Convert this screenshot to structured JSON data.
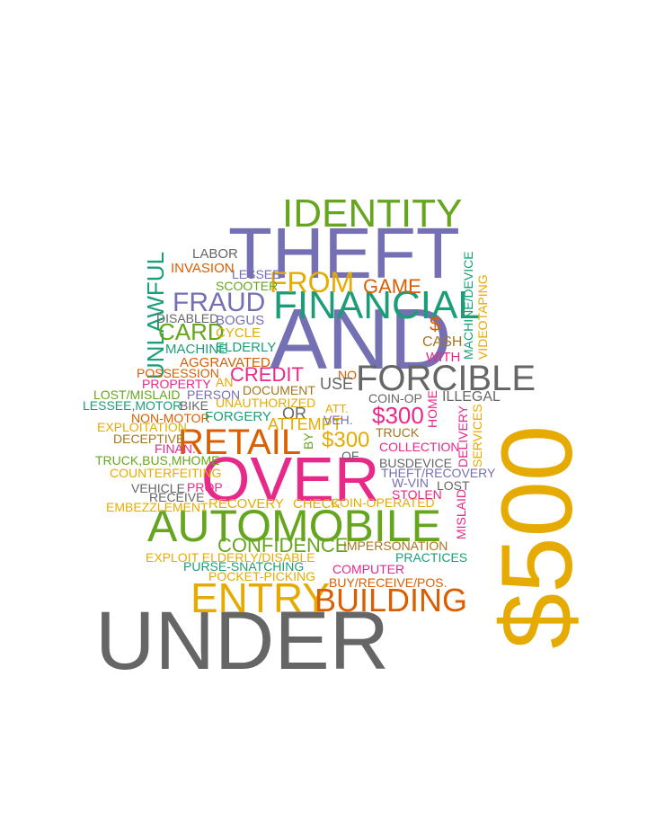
{
  "palette": {
    "green": "#66a61e",
    "purple": "#7570b3",
    "pink": "#e7298a",
    "gold": "#e6ab02",
    "orange": "#d95f02",
    "gray": "#666666",
    "teal": "#1b9e77",
    "brown": "#a6761d"
  },
  "words": [
    "UNDER",
    "$500",
    "AND",
    "THEFT",
    "OVER",
    "AUTOMOBILE",
    "RETAIL",
    "IDENTITY",
    "FINANCIAL",
    "FORCIBLE",
    "ENTRY",
    "BUILDING",
    "FROM",
    "FRAUD",
    "UNLAWFUL",
    "CARD",
    "CREDIT",
    "$300",
    "GAME",
    "CONFIDENCE",
    "LABOR",
    "INVASION",
    "LESSEE",
    "SCOOTER",
    "DISABLED",
    "BOGUS",
    "CYCLE",
    "MACHINE",
    "ELDERLY",
    "AGGRAVATED",
    "POSSESSION",
    "PROPERTY",
    "LOST/MISLAID",
    "LESSEE,MOTOR",
    "BIKE",
    "NON-MOTOR",
    "EXPLOITATION",
    "DECEPTIVE",
    "FINAN.",
    "TRUCK,BUS,MHOME",
    "COUNTERFEITING",
    "VEHICLE",
    "RECEIVE",
    "EMBEZZLEMENT",
    "EXPLOIT ELDERLY/DISABLE",
    "PURSE-SNATCHING",
    "POCKET-PICKING",
    "COMPUTER",
    "BUY/RECEIVE/POS.",
    "IMPERSONATION",
    "PRACTICES",
    "COIN-OPERATED",
    "STOLEN",
    "W-VIN",
    "LOST",
    "THEFT/RECOVERY",
    "BUSDEVICE",
    "COLLECTION",
    "TRUCK",
    "COIN-OP",
    "ILLEGAL",
    "CASH",
    "WITH",
    "MACHINE/DEVICE",
    "VIDEOTAPING",
    "SERVICES",
    "DELIVERY",
    "MISLAID",
    "PROP",
    "HOME",
    "DOCUMENT",
    "UNAUTHORIZED",
    "FORGERY",
    "ATTEMPT",
    "VEH.",
    "OR",
    "OF",
    "NO",
    "USE",
    "BY",
    "ATT.",
    "PERSON",
    "AN",
    "$",
    "RECOVERY",
    "CHECK",
    "AUTOMOBILE"
  ]
}
